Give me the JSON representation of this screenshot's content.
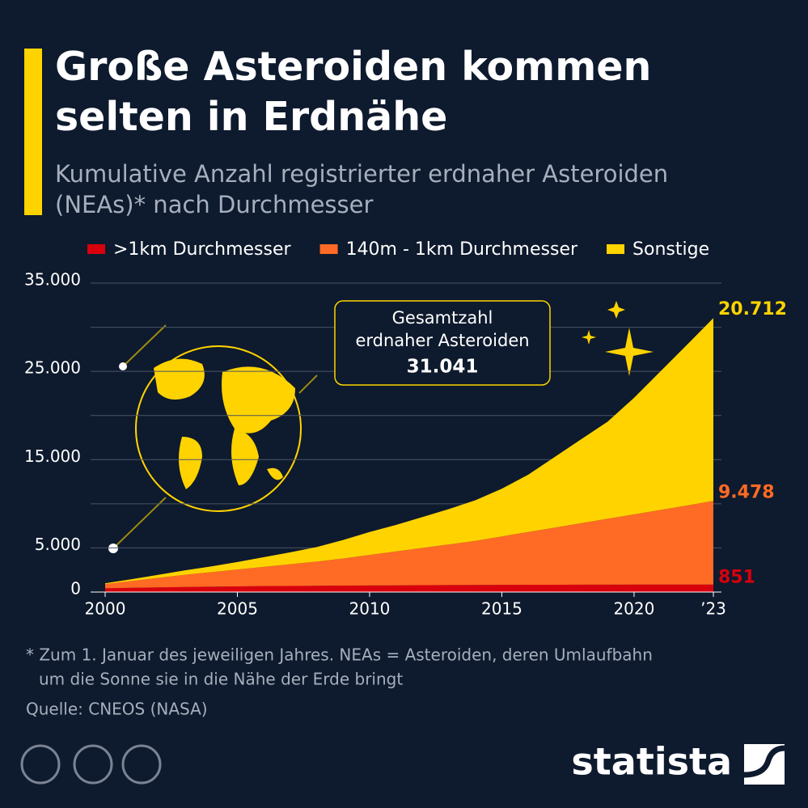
{
  "chart_data": {
    "type": "stacked_area",
    "title": "Große Asteroiden kommen selten in Erdnähe",
    "subtitle": "Kumulative Anzahl registrierter erdnaher Asteroiden (NEAs)* nach Durchmesser",
    "x": [
      2000,
      2001,
      2002,
      2003,
      2004,
      2005,
      2006,
      2007,
      2008,
      2009,
      2010,
      2011,
      2012,
      2013,
      2014,
      2015,
      2016,
      2017,
      2018,
      2019,
      2020,
      2021,
      2022,
      2023
    ],
    "xlim": [
      2000,
      2023
    ],
    "xticks": [
      2000,
      2005,
      2010,
      2015,
      2020,
      {
        "value": 2023,
        "label": "’23"
      }
    ],
    "ylim": [
      0,
      35000
    ],
    "yticks": [
      0,
      {
        "value": 5000,
        "label": "5.000"
      },
      {
        "value": 15000,
        "label": "15.000"
      },
      {
        "value": 25000,
        "label": "25.000"
      },
      {
        "value": 35000,
        "label": "35.000"
      }
    ],
    "minor_yticks": [
      10000,
      20000,
      30000
    ],
    "grid": true,
    "series": [
      {
        "name": ">1km Durchmesser",
        "color": "#d9000d",
        "values": [
          420,
          480,
          530,
          570,
          610,
          640,
          670,
          690,
          710,
          730,
          745,
          760,
          775,
          790,
          800,
          810,
          820,
          828,
          835,
          840,
          845,
          848,
          850,
          851
        ],
        "value_labels": [
          null,
          null,
          null,
          null,
          null,
          null,
          null,
          null,
          null,
          null,
          null,
          null,
          null,
          null,
          null,
          null,
          null,
          null,
          null,
          null,
          null,
          null,
          null,
          "851"
        ]
      },
      {
        "name": "140m - 1km Durchmesser",
        "color": "#ff6a24",
        "values": [
          480,
          770,
          1070,
          1380,
          1640,
          1910,
          2180,
          2460,
          2740,
          3070,
          3455,
          3840,
          4225,
          4610,
          5000,
          5490,
          5980,
          6472,
          6965,
          7460,
          7955,
          8452,
          8950,
          9478
        ],
        "value_labels": [
          null,
          null,
          null,
          null,
          null,
          null,
          null,
          null,
          null,
          null,
          null,
          null,
          null,
          null,
          null,
          null,
          null,
          null,
          null,
          null,
          null,
          null,
          null,
          "9.478"
        ]
      },
      {
        "name": "Sonstige",
        "color": "#ffd300",
        "values": [
          100,
          200,
          350,
          500,
          650,
          850,
          1100,
          1350,
          1650,
          2100,
          2600,
          3000,
          3500,
          4000,
          4600,
          5400,
          6500,
          8000,
          9500,
          11000,
          13200,
          15700,
          18200,
          20712
        ],
        "value_labels": [
          null,
          null,
          null,
          null,
          null,
          null,
          null,
          null,
          null,
          null,
          null,
          null,
          null,
          null,
          null,
          null,
          null,
          null,
          null,
          null,
          null,
          null,
          null,
          "20.712"
        ]
      }
    ],
    "annotation": {
      "lines": [
        "Gesamtzahl",
        "erdnaher Asteroiden"
      ],
      "total_label": "31.041"
    },
    "footnote": [
      "* Zum 1. Januar des jeweiligen Jahres. NEAs = Asteroiden, deren Umlaufbahn",
      "um die Sonne sie in die Nähe der Erde bringt"
    ],
    "source": "Quelle: CNEOS (NASA)",
    "logo": "statista"
  }
}
